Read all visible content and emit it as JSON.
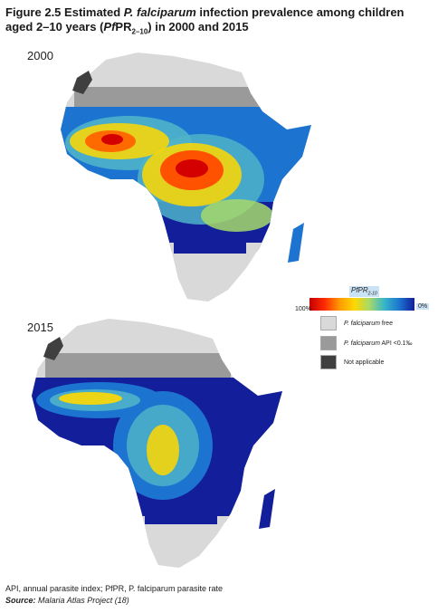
{
  "figure": {
    "number": "Figure 2.5",
    "title_pre": "Estimated ",
    "title_species": "P. falciparum",
    "title_mid": " infection prevalence among children aged 2–10 years (",
    "title_abbr_italic": "Pf",
    "title_abbr": "PR",
    "title_sub": "2–10",
    "title_post": ") in 2000 and 2015"
  },
  "maps": [
    {
      "year": "2000"
    },
    {
      "year": "2015"
    }
  ],
  "legend": {
    "scale_title": "PfPR",
    "scale_title_sub": "2-10",
    "scale_min": "100%",
    "scale_max": "0%",
    "scale_colors": [
      "#c40000",
      "#ff2a00",
      "#ff9a00",
      "#ffd800",
      "#a6d96a",
      "#34b5c9",
      "#1d74d0",
      "#121e9a"
    ],
    "items": [
      {
        "label_italic": "P. falciparum",
        "label_rest": " free",
        "color": "#d9d9d9"
      },
      {
        "label_italic": "P. falciparum",
        "label_rest": " API <0.1‰",
        "color": "#9a9a9a"
      },
      {
        "label_italic": "",
        "label_rest": "Not applicable",
        "color": "#3f3f3f"
      }
    ]
  },
  "footnote": {
    "line1": "API, annual parasite index; PfPR, P. falciparum parasite rate",
    "source_label": "Source:",
    "source_text": " Malaria Atlas Project (18)"
  }
}
